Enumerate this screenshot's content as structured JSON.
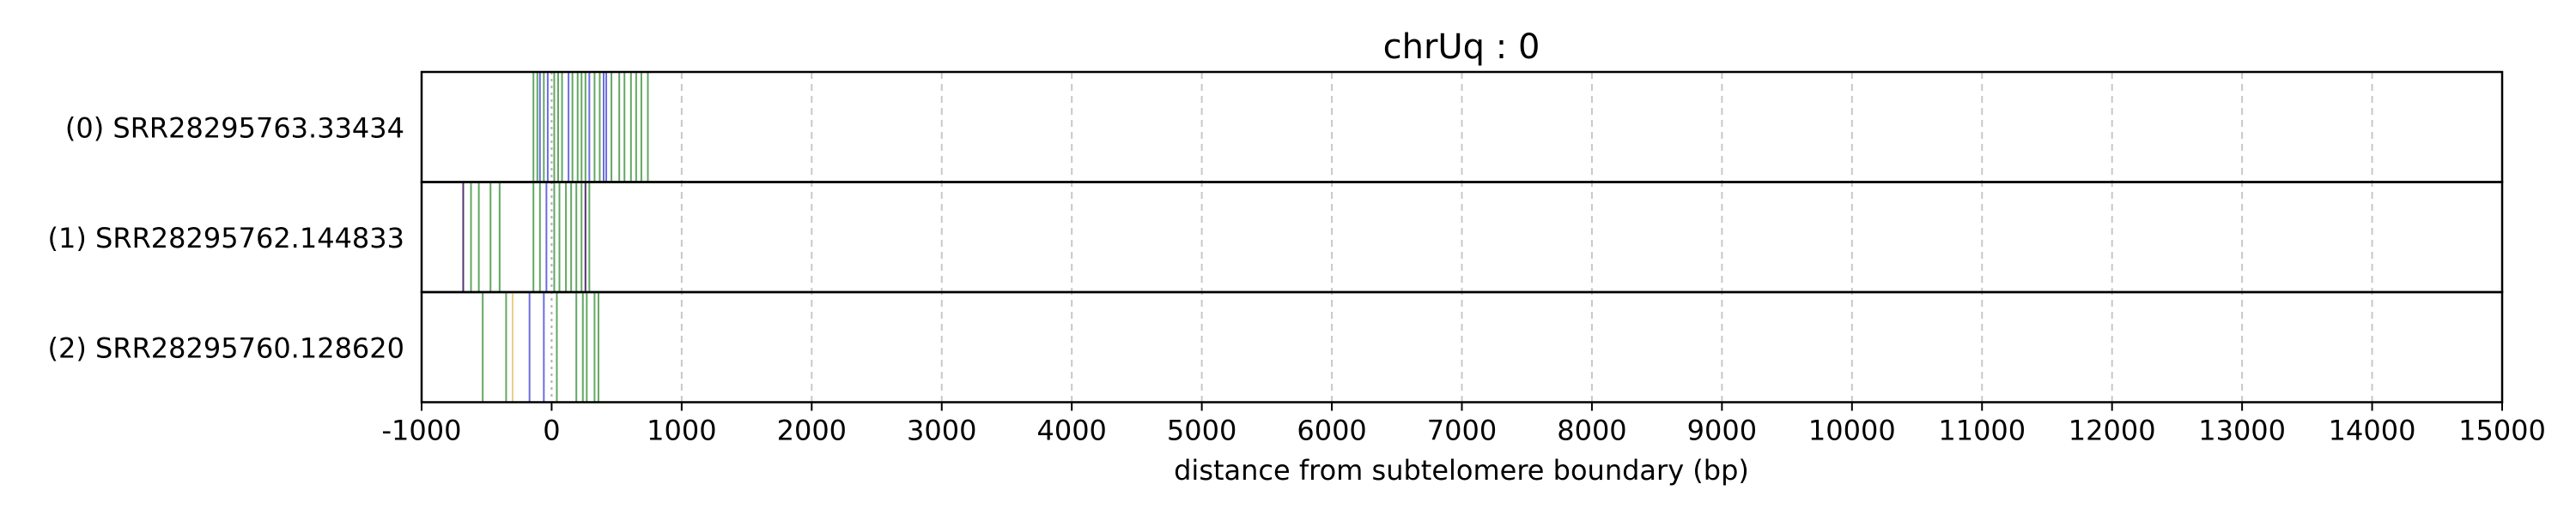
{
  "chart_data": {
    "type": "strip",
    "title": "chrUq : 0",
    "xlabel": "distance from subtelomere boundary (bp)",
    "ylabel": "",
    "xlim": [
      -1000,
      15000
    ],
    "xticks": [
      -1000,
      0,
      1000,
      2000,
      3000,
      4000,
      5000,
      6000,
      7000,
      8000,
      9000,
      10000,
      11000,
      12000,
      13000,
      14000,
      15000
    ],
    "xtick_labels": [
      "-1000",
      "0",
      "1000",
      "2000",
      "3000",
      "4000",
      "5000",
      "6000",
      "7000",
      "8000",
      "9000",
      "10000",
      "11000",
      "12000",
      "13000",
      "14000",
      "15000"
    ],
    "grid": "vertical dashed at x ticks",
    "colors": {
      "green": "#2e8b2e",
      "blue": "#3b3bd6",
      "purple": "#4b2a6b",
      "yellow": "#e0c060",
      "grid": "#c8c8c8",
      "zero_line": "#b0b0b0"
    },
    "rows": [
      {
        "label": "(0) SRR28295763.33434",
        "marks": [
          {
            "x": -140,
            "color": "green"
          },
          {
            "x": -110,
            "color": "green"
          },
          {
            "x": -90,
            "color": "blue"
          },
          {
            "x": -60,
            "color": "green"
          },
          {
            "x": -30,
            "color": "blue"
          },
          {
            "x": 20,
            "color": "green"
          },
          {
            "x": 50,
            "color": "green"
          },
          {
            "x": 80,
            "color": "green"
          },
          {
            "x": 130,
            "color": "blue"
          },
          {
            "x": 160,
            "color": "green"
          },
          {
            "x": 200,
            "color": "green"
          },
          {
            "x": 230,
            "color": "green"
          },
          {
            "x": 260,
            "color": "green"
          },
          {
            "x": 290,
            "color": "blue"
          },
          {
            "x": 330,
            "color": "green"
          },
          {
            "x": 370,
            "color": "green"
          },
          {
            "x": 400,
            "color": "blue"
          },
          {
            "x": 420,
            "color": "blue"
          },
          {
            "x": 460,
            "color": "green"
          },
          {
            "x": 520,
            "color": "green"
          },
          {
            "x": 560,
            "color": "green"
          },
          {
            "x": 610,
            "color": "green"
          },
          {
            "x": 650,
            "color": "green"
          },
          {
            "x": 690,
            "color": "green"
          },
          {
            "x": 740,
            "color": "green"
          }
        ]
      },
      {
        "label": "(1) SRR28295762.144833",
        "marks": [
          {
            "x": -680,
            "color": "purple"
          },
          {
            "x": -620,
            "color": "green"
          },
          {
            "x": -560,
            "color": "green"
          },
          {
            "x": -470,
            "color": "green"
          },
          {
            "x": -400,
            "color": "green"
          },
          {
            "x": -140,
            "color": "green"
          },
          {
            "x": -90,
            "color": "green"
          },
          {
            "x": -40,
            "color": "blue"
          },
          {
            "x": 20,
            "color": "green"
          },
          {
            "x": 60,
            "color": "green"
          },
          {
            "x": 110,
            "color": "green"
          },
          {
            "x": 150,
            "color": "green"
          },
          {
            "x": 190,
            "color": "green"
          },
          {
            "x": 230,
            "color": "green"
          },
          {
            "x": 260,
            "color": "purple"
          },
          {
            "x": 290,
            "color": "green"
          }
        ]
      },
      {
        "label": "(2) SRR28295760.128620",
        "marks": [
          {
            "x": -530,
            "color": "green"
          },
          {
            "x": -350,
            "color": "green"
          },
          {
            "x": -300,
            "color": "yellow"
          },
          {
            "x": -170,
            "color": "blue"
          },
          {
            "x": -60,
            "color": "blue"
          },
          {
            "x": 40,
            "color": "green"
          },
          {
            "x": 190,
            "color": "green"
          },
          {
            "x": 240,
            "color": "green"
          },
          {
            "x": 270,
            "color": "green"
          },
          {
            "x": 330,
            "color": "green"
          },
          {
            "x": 360,
            "color": "green"
          }
        ]
      }
    ]
  }
}
